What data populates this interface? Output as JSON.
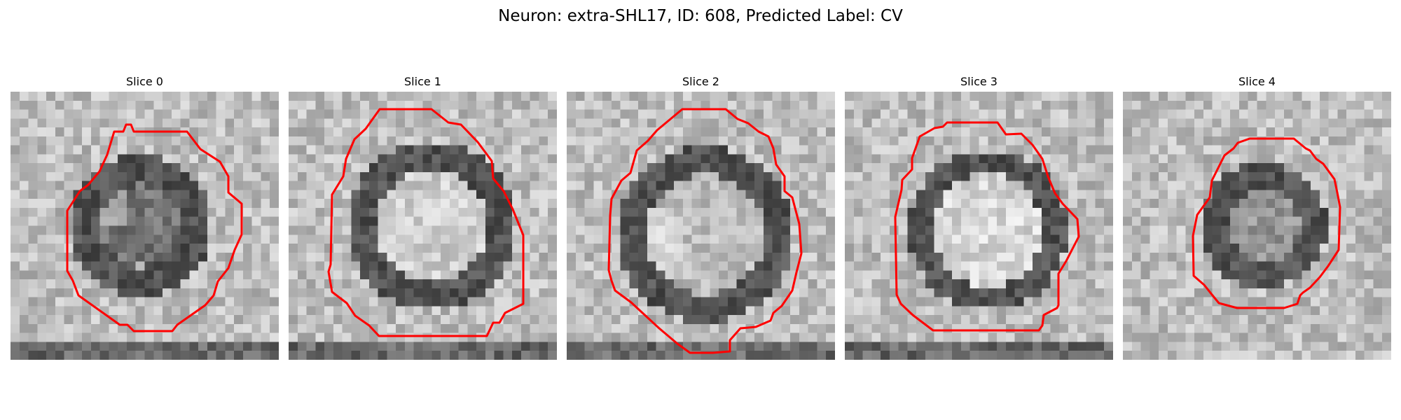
{
  "title": "Neuron: extra-SHL17, ID: 608, Predicted Label: CV",
  "panels": [
    {
      "label": "Slice 0"
    },
    {
      "label": "Slice 1"
    },
    {
      "label": "Slice 2"
    },
    {
      "label": "Slice 3"
    },
    {
      "label": "Slice 4"
    }
  ],
  "colors": {
    "contour": "#ff0000",
    "background": "#ffffff"
  },
  "colormap": "grayscale"
}
